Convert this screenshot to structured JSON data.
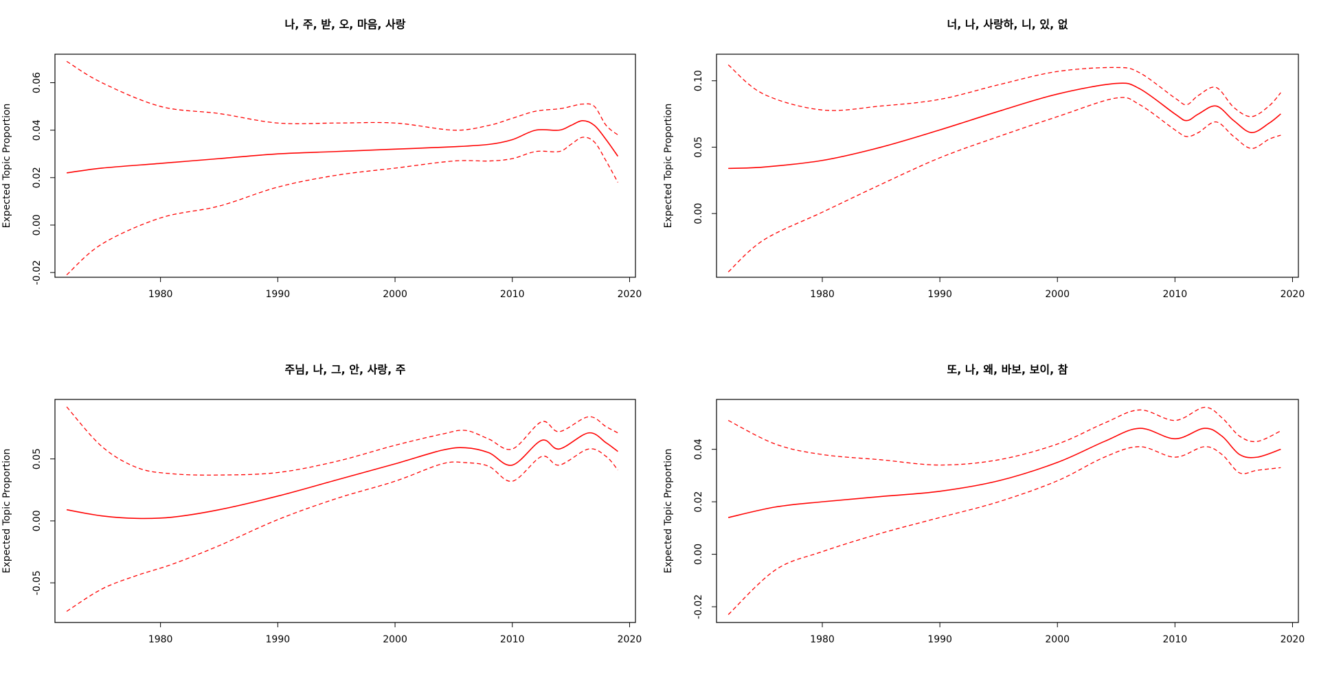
{
  "colors": {
    "line": "#ff0000",
    "axis": "#000000",
    "background": "#ffffff"
  },
  "chart_data": [
    {
      "type": "line",
      "title": "나, 주, 받, 오, 마음, 사랑",
      "xlabel": "",
      "ylabel": "Expected Topic Proportion",
      "xlim": [
        1971,
        2020.5
      ],
      "ylim": [
        -0.022,
        0.072
      ],
      "xticks": [
        1980,
        1990,
        2000,
        2010,
        2020
      ],
      "yticks": [
        -0.02,
        0.0,
        0.02,
        0.04,
        0.06
      ],
      "ytick_labels": [
        "-0.02",
        "0.00",
        "0.02",
        "0.04",
        "0.06"
      ],
      "x": [
        1972,
        1975,
        1980,
        1985,
        1990,
        1995,
        2000,
        2005,
        2008,
        2010,
        2012,
        2014,
        2015,
        2016,
        2017,
        2018,
        2019
      ],
      "series": [
        {
          "name": "mean",
          "style": "solid",
          "values": [
            0.022,
            0.024,
            0.026,
            0.028,
            0.03,
            0.031,
            0.032,
            0.033,
            0.034,
            0.036,
            0.04,
            0.04,
            0.042,
            0.044,
            0.042,
            0.036,
            0.029
          ]
        },
        {
          "name": "upper",
          "style": "dashed",
          "values": [
            0.069,
            0.06,
            0.05,
            0.047,
            0.043,
            0.043,
            0.043,
            0.04,
            0.042,
            0.045,
            0.048,
            0.049,
            0.05,
            0.051,
            0.05,
            0.042,
            0.038
          ]
        },
        {
          "name": "lower",
          "style": "dashed",
          "values": [
            -0.021,
            -0.008,
            0.003,
            0.008,
            0.016,
            0.021,
            0.024,
            0.027,
            0.027,
            0.028,
            0.031,
            0.031,
            0.034,
            0.037,
            0.035,
            0.027,
            0.018
          ]
        }
      ]
    },
    {
      "type": "line",
      "title": "너, 나, 사랑하, 니, 있, 없",
      "xlabel": "",
      "ylabel": "Expected Topic Proportion",
      "xlim": [
        1971,
        2020.5
      ],
      "ylim": [
        -0.048,
        0.12
      ],
      "xticks": [
        1980,
        1990,
        2000,
        2010,
        2020
      ],
      "yticks": [
        0.0,
        0.05,
        0.1
      ],
      "ytick_labels": [
        "0.00",
        "0.05",
        "0.10"
      ],
      "x": [
        1972,
        1975,
        1980,
        1985,
        1990,
        1995,
        2000,
        2005,
        2007,
        2010,
        2011,
        2012,
        2013.5,
        2015,
        2016.5,
        2018,
        2019
      ],
      "series": [
        {
          "name": "mean",
          "style": "solid",
          "values": [
            0.034,
            0.035,
            0.04,
            0.05,
            0.063,
            0.077,
            0.09,
            0.098,
            0.094,
            0.075,
            0.07,
            0.075,
            0.081,
            0.07,
            0.061,
            0.068,
            0.075
          ]
        },
        {
          "name": "upper",
          "style": "dashed",
          "values": [
            0.112,
            0.09,
            0.078,
            0.081,
            0.086,
            0.097,
            0.107,
            0.11,
            0.106,
            0.087,
            0.082,
            0.089,
            0.095,
            0.08,
            0.073,
            0.081,
            0.091
          ]
        },
        {
          "name": "lower",
          "style": "dashed",
          "values": [
            -0.044,
            -0.02,
            0.001,
            0.022,
            0.042,
            0.058,
            0.073,
            0.087,
            0.082,
            0.063,
            0.058,
            0.061,
            0.069,
            0.058,
            0.049,
            0.056,
            0.059
          ]
        }
      ]
    },
    {
      "type": "line",
      "title": "주님, 나, 그, 안, 사랑, 주",
      "xlabel": "",
      "ylabel": "Expected Topic Proportion",
      "xlim": [
        1971,
        2020.5
      ],
      "ylim": [
        -0.082,
        0.098
      ],
      "xticks": [
        1980,
        1990,
        2000,
        2010,
        2020
      ],
      "yticks": [
        -0.05,
        0.0,
        0.05
      ],
      "ytick_labels": [
        "-0.05",
        "0.00",
        "0.05"
      ],
      "x": [
        1972,
        1975,
        1978,
        1981,
        1985,
        1990,
        1995,
        2000,
        2004,
        2006,
        2008,
        2010,
        2012.5,
        2014,
        2016.5,
        2018,
        2019
      ],
      "series": [
        {
          "name": "mean",
          "style": "solid",
          "values": [
            0.009,
            0.004,
            0.002,
            0.003,
            0.009,
            0.02,
            0.033,
            0.046,
            0.057,
            0.059,
            0.055,
            0.045,
            0.065,
            0.058,
            0.071,
            0.063,
            0.056
          ]
        },
        {
          "name": "upper",
          "style": "dashed",
          "values": [
            0.092,
            0.06,
            0.043,
            0.038,
            0.037,
            0.039,
            0.048,
            0.061,
            0.07,
            0.073,
            0.066,
            0.058,
            0.08,
            0.072,
            0.084,
            0.076,
            0.071
          ]
        },
        {
          "name": "lower",
          "style": "dashed",
          "values": [
            -0.073,
            -0.055,
            -0.044,
            -0.035,
            -0.02,
            0.001,
            0.018,
            0.032,
            0.046,
            0.047,
            0.044,
            0.032,
            0.052,
            0.045,
            0.058,
            0.052,
            0.041
          ]
        }
      ]
    },
    {
      "type": "line",
      "title": "또, 나, 왜, 바보, 보이, 참",
      "xlabel": "",
      "ylabel": "Expected Topic Proportion",
      "xlim": [
        1971,
        2020.5
      ],
      "ylim": [
        -0.026,
        0.059
      ],
      "xticks": [
        1980,
        1990,
        2000,
        2010,
        2020
      ],
      "yticks": [
        -0.02,
        0.0,
        0.02,
        0.04
      ],
      "ytick_labels": [
        "-0.02",
        "0.00",
        "0.02",
        "0.04"
      ],
      "x": [
        1972,
        1976,
        1980,
        1985,
        1990,
        1995,
        2000,
        2004,
        2007,
        2010,
        2012.5,
        2014,
        2015.5,
        2017,
        2019
      ],
      "series": [
        {
          "name": "mean",
          "style": "solid",
          "values": [
            0.014,
            0.018,
            0.02,
            0.022,
            0.024,
            0.028,
            0.035,
            0.043,
            0.048,
            0.044,
            0.048,
            0.045,
            0.038,
            0.037,
            0.04
          ]
        },
        {
          "name": "upper",
          "style": "dashed",
          "values": [
            0.051,
            0.042,
            0.038,
            0.036,
            0.034,
            0.036,
            0.042,
            0.05,
            0.055,
            0.051,
            0.056,
            0.052,
            0.045,
            0.043,
            0.047
          ]
        },
        {
          "name": "lower",
          "style": "dashed",
          "values": [
            -0.023,
            -0.006,
            0.001,
            0.008,
            0.014,
            0.02,
            0.028,
            0.037,
            0.041,
            0.037,
            0.041,
            0.038,
            0.031,
            0.032,
            0.033
          ]
        }
      ]
    }
  ]
}
